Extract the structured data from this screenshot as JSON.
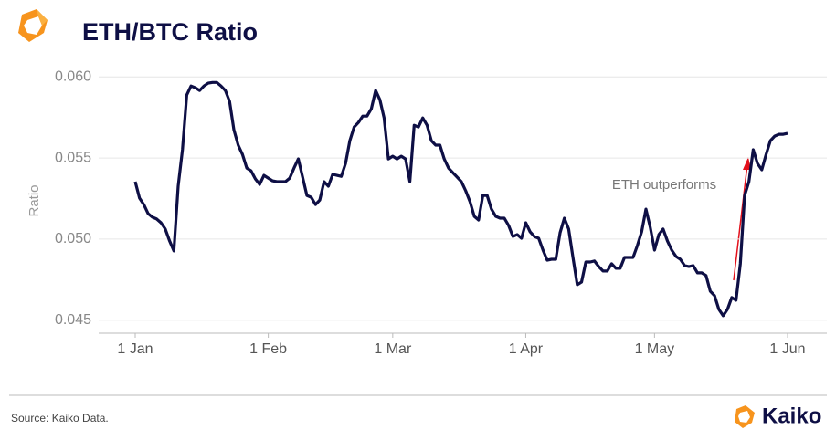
{
  "chart_data": {
    "type": "line",
    "title": "ETH/BTC Ratio",
    "y_label": "Ratio",
    "annotation": "ETH outperforms",
    "source": "Source: Kaiko Data.",
    "brand": "Kaiko",
    "x": [
      "1 Jan",
      "2 Jan",
      "3 Jan",
      "4 Jan",
      "5 Jan",
      "6 Jan",
      "7 Jan",
      "8 Jan",
      "9 Jan",
      "10 Jan",
      "11 Jan",
      "12 Jan",
      "13 Jan",
      "14 Jan",
      "15 Jan",
      "16 Jan",
      "17 Jan",
      "18 Jan",
      "19 Jan",
      "20 Jan",
      "21 Jan",
      "22 Jan",
      "23 Jan",
      "24 Jan",
      "25 Jan",
      "26 Jan",
      "27 Jan",
      "28 Jan",
      "29 Jan",
      "30 Jan",
      "31 Jan",
      "1 Feb",
      "2 Feb",
      "3 Feb",
      "4 Feb",
      "5 Feb",
      "6 Feb",
      "7 Feb",
      "8 Feb",
      "9 Feb",
      "10 Feb",
      "11 Feb",
      "12 Feb",
      "13 Feb",
      "14 Feb",
      "15 Feb",
      "16 Feb",
      "17 Feb",
      "18 Feb",
      "19 Feb",
      "20 Feb",
      "21 Feb",
      "22 Feb",
      "23 Feb",
      "24 Feb",
      "25 Feb",
      "26 Feb",
      "27 Feb",
      "28 Feb",
      "29 Feb",
      "1 Mar",
      "2 Mar",
      "3 Mar",
      "4 Mar",
      "5 Mar",
      "6 Mar",
      "7 Mar",
      "8 Mar",
      "9 Mar",
      "10 Mar",
      "11 Mar",
      "12 Mar",
      "13 Mar",
      "14 Mar",
      "15 Mar",
      "16 Mar",
      "17 Mar",
      "18 Mar",
      "19 Mar",
      "20 Mar",
      "21 Mar",
      "22 Mar",
      "23 Mar",
      "24 Mar",
      "25 Mar",
      "26 Mar",
      "27 Mar",
      "28 Mar",
      "29 Mar",
      "30 Mar",
      "31 Mar",
      "1 Apr",
      "2 Apr",
      "3 Apr",
      "4 Apr",
      "5 Apr",
      "6 Apr",
      "7 Apr",
      "8 Apr",
      "9 Apr",
      "10 Apr",
      "11 Apr",
      "12 Apr",
      "13 Apr",
      "14 Apr",
      "15 Apr",
      "16 Apr",
      "17 Apr",
      "18 Apr",
      "19 Apr",
      "20 Apr",
      "21 Apr",
      "22 Apr",
      "23 Apr",
      "24 Apr",
      "25 Apr",
      "26 Apr",
      "27 Apr",
      "28 Apr",
      "29 Apr",
      "30 Apr",
      "1 May",
      "2 May",
      "3 May",
      "4 May",
      "5 May",
      "6 May",
      "7 May",
      "8 May",
      "9 May",
      "10 May",
      "11 May",
      "12 May",
      "13 May",
      "14 May",
      "15 May",
      "16 May",
      "17 May",
      "18 May",
      "19 May",
      "20 May",
      "21 May",
      "22 May",
      "23 May",
      "24 May",
      "25 May",
      "26 May",
      "27 May",
      "28 May",
      "29 May",
      "30 May",
      "31 May",
      "1 Jun"
    ],
    "series": [
      {
        "name": "ETH/BTC",
        "color": "#0e0f45",
        "values": [
          0.05354,
          0.05253,
          0.05213,
          0.05157,
          0.05135,
          0.05124,
          0.05101,
          0.05062,
          0.04989,
          0.04927,
          0.05326,
          0.05551,
          0.05888,
          0.05944,
          0.05933,
          0.05916,
          0.05944,
          0.05961,
          0.05966,
          0.05966,
          0.05944,
          0.05916,
          0.05848,
          0.05674,
          0.05579,
          0.05522,
          0.05438,
          0.05421,
          0.05371,
          0.05337,
          0.05393,
          0.05376,
          0.05359,
          0.05354,
          0.05354,
          0.05354,
          0.05376,
          0.05438,
          0.05494,
          0.05382,
          0.05269,
          0.05258,
          0.05213,
          0.05241,
          0.05354,
          0.05326,
          0.05399,
          0.05393,
          0.05387,
          0.05466,
          0.05607,
          0.05691,
          0.05719,
          0.05758,
          0.05758,
          0.05803,
          0.05916,
          0.05859,
          0.05747,
          0.05494,
          0.05511,
          0.05494,
          0.05511,
          0.05494,
          0.05354,
          0.05702,
          0.05691,
          0.05747,
          0.05702,
          0.05607,
          0.05579,
          0.05579,
          0.05494,
          0.05438,
          0.0541,
          0.05382,
          0.05354,
          0.05298,
          0.05231,
          0.0514,
          0.05118,
          0.05269,
          0.05269,
          0.05185,
          0.0514,
          0.05129,
          0.05129,
          0.05084,
          0.05016,
          0.05028,
          0.05005,
          0.05101,
          0.05045,
          0.05016,
          0.05005,
          0.04932,
          0.0487,
          0.04876,
          0.04876,
          0.05039,
          0.05129,
          0.05062,
          0.04887,
          0.04719,
          0.04735,
          0.04859,
          0.04859,
          0.04865,
          0.04831,
          0.04803,
          0.04803,
          0.04848,
          0.0482,
          0.0482,
          0.04887,
          0.04887,
          0.04887,
          0.0496,
          0.05045,
          0.05185,
          0.05073,
          0.04932,
          0.05028,
          0.05062,
          0.04989,
          0.04932,
          0.04893,
          0.04876,
          0.04837,
          0.04831,
          0.04837,
          0.04792,
          0.04792,
          0.04775,
          0.04679,
          0.04651,
          0.04567,
          0.04528,
          0.04567,
          0.0464,
          0.04623,
          0.04848,
          0.05269,
          0.05354,
          0.05551,
          0.05466,
          0.05427,
          0.05522,
          0.05607,
          0.05635,
          0.05646,
          0.05646,
          0.05652
        ]
      }
    ],
    "xticks": [
      "1 Jan",
      "1 Feb",
      "1 Mar",
      "1 Apr",
      "1 May",
      "1 Jun"
    ],
    "ylim": [
      0.0442,
      0.0608
    ],
    "yticks": [
      {
        "value": 0.045,
        "label": "0.045"
      },
      {
        "value": 0.05,
        "label": "0.050"
      },
      {
        "value": 0.055,
        "label": "0.055"
      },
      {
        "value": 0.06,
        "label": "0.060"
      }
    ],
    "grid": true
  }
}
